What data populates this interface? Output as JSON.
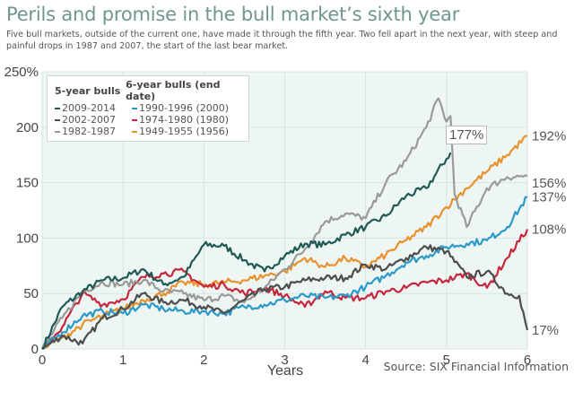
{
  "title": "Perils and promise in the bull market’s sixth year",
  "subtitle": "Five bull markets, outside of the current one, have made it through the fifth year. Two fell apart in the next year, with steep and painful drops in 1987 and 2007, the start of the last bear market.",
  "source": "Source: SIX Financial Information",
  "legend": {
    "header_5yr": "5-year bulls",
    "header_6yr": "6-year bulls (end date)"
  },
  "callout": "177%",
  "chart_data": {
    "type": "line",
    "title": "Perils and promise in the bull market’s sixth year",
    "xlabel": "Years",
    "ylabel": "",
    "xlim": [
      0,
      6
    ],
    "ylim": [
      0,
      250
    ],
    "xticks": [
      "0",
      "1",
      "2",
      "3",
      "4",
      "5",
      "6"
    ],
    "yticks": [
      "0",
      "50",
      "100",
      "150",
      "200",
      "250%"
    ],
    "grid": true,
    "legend_position": "top-left",
    "series": [
      {
        "name": "2009-2014",
        "group": "5-year bulls",
        "color": "#1f5a55",
        "end_label": "",
        "x": [
          0,
          0.25,
          0.5,
          0.75,
          1,
          1.25,
          1.5,
          1.75,
          2,
          2.25,
          2.5,
          2.75,
          3,
          3.25,
          3.5,
          3.75,
          4,
          4.25,
          4.5,
          4.75,
          5.05
        ],
        "y": [
          0,
          38,
          52,
          62,
          64,
          72,
          58,
          65,
          94,
          93,
          80,
          70,
          84,
          95,
          94,
          103,
          110,
          120,
          138,
          145,
          177
        ]
      },
      {
        "name": "2002-2007",
        "group": "5-year bulls",
        "color": "#4d4d4d",
        "end_label": "17%",
        "x": [
          0,
          0.25,
          0.5,
          0.75,
          1,
          1.25,
          1.5,
          1.75,
          2,
          2.25,
          2.5,
          2.75,
          3,
          3.25,
          3.5,
          3.75,
          4,
          4.25,
          4.5,
          4.75,
          5,
          5.25,
          5.5,
          5.75,
          5.9,
          6
        ],
        "y": [
          0,
          12,
          5,
          28,
          36,
          50,
          42,
          44,
          38,
          32,
          44,
          54,
          56,
          62,
          64,
          64,
          76,
          72,
          82,
          92,
          88,
          65,
          70,
          50,
          48,
          17
        ]
      },
      {
        "name": "1982-1987",
        "group": "5-year bulls",
        "color": "#9a9a9a",
        "end_label": "156%",
        "x": [
          0,
          0.25,
          0.5,
          0.75,
          1,
          1.25,
          1.5,
          1.75,
          2,
          2.25,
          2.5,
          2.75,
          3,
          3.25,
          3.5,
          3.75,
          4,
          4.25,
          4.5,
          4.75,
          4.9,
          5,
          5.05,
          5.1,
          5.25,
          5.5,
          5.75,
          6
        ],
        "y": [
          0,
          28,
          52,
          60,
          58,
          62,
          52,
          50,
          44,
          48,
          42,
          55,
          72,
          90,
          115,
          122,
          118,
          150,
          170,
          200,
          226,
          205,
          210,
          140,
          110,
          145,
          155,
          156
        ]
      },
      {
        "name": "1990-1996 (2000)",
        "group": "6-year bulls",
        "color": "#2b9ac9",
        "end_label": "137%",
        "x": [
          0,
          0.25,
          0.5,
          0.75,
          1,
          1.25,
          1.5,
          1.75,
          2,
          2.25,
          2.5,
          2.75,
          3,
          3.25,
          3.5,
          3.75,
          4,
          4.25,
          4.5,
          4.75,
          5,
          5.25,
          5.5,
          5.75,
          6
        ],
        "y": [
          0,
          15,
          30,
          34,
          32,
          40,
          36,
          34,
          34,
          32,
          38,
          40,
          44,
          48,
          46,
          48,
          56,
          66,
          78,
          84,
          92,
          95,
          98,
          110,
          137
        ]
      },
      {
        "name": "1974-1980 (1980)",
        "group": "6-year bulls",
        "color": "#c5283d",
        "end_label": "108%",
        "x": [
          0,
          0.25,
          0.5,
          0.75,
          1,
          1.25,
          1.5,
          1.75,
          2,
          2.25,
          2.5,
          2.75,
          3,
          3.25,
          3.5,
          3.75,
          4,
          4.25,
          4.5,
          4.75,
          5,
          5.25,
          5.5,
          5.75,
          6
        ],
        "y": [
          0,
          20,
          50,
          40,
          45,
          65,
          68,
          70,
          56,
          58,
          50,
          55,
          48,
          38,
          52,
          46,
          46,
          52,
          55,
          60,
          62,
          68,
          55,
          82,
          108
        ]
      },
      {
        "name": "1949-1955 (1956)",
        "group": "6-year bulls",
        "color": "#e8922e",
        "end_label": "192%",
        "x": [
          0,
          0.25,
          0.5,
          0.75,
          1,
          1.25,
          1.5,
          1.75,
          2,
          2.25,
          2.5,
          2.75,
          3,
          3.25,
          3.5,
          3.75,
          4,
          4.25,
          4.5,
          4.75,
          5,
          5.25,
          5.5,
          5.75,
          6
        ],
        "y": [
          0,
          10,
          22,
          30,
          36,
          44,
          50,
          60,
          58,
          60,
          62,
          66,
          70,
          82,
          74,
          82,
          74,
          85,
          98,
          110,
          128,
          145,
          160,
          175,
          192
        ]
      }
    ]
  }
}
